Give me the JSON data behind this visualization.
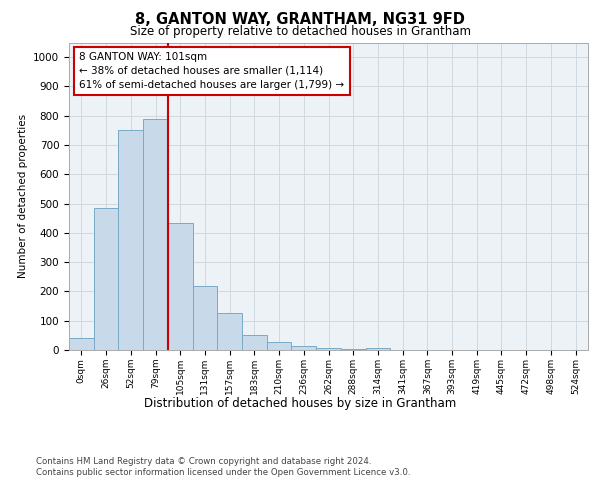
{
  "title": "8, GANTON WAY, GRANTHAM, NG31 9FD",
  "subtitle": "Size of property relative to detached houses in Grantham",
  "xlabel": "Distribution of detached houses by size in Grantham",
  "ylabel": "Number of detached properties",
  "categories": [
    "0sqm",
    "26sqm",
    "52sqm",
    "79sqm",
    "105sqm",
    "131sqm",
    "157sqm",
    "183sqm",
    "210sqm",
    "236sqm",
    "262sqm",
    "288sqm",
    "314sqm",
    "341sqm",
    "367sqm",
    "393sqm",
    "419sqm",
    "445sqm",
    "472sqm",
    "498sqm",
    "524sqm"
  ],
  "bar_heights": [
    40,
    485,
    750,
    790,
    435,
    220,
    128,
    50,
    27,
    13,
    8,
    2,
    8,
    0,
    0,
    0,
    0,
    0,
    0,
    0,
    0
  ],
  "vline_x": 4.0,
  "annotation_text": "8 GANTON WAY: 101sqm\n← 38% of detached houses are smaller (1,114)\n61% of semi-detached houses are larger (1,799) →",
  "bar_color": "#c8d9ea",
  "bar_edge_color": "#7aaac8",
  "vline_color": "#cc0000",
  "grid_color": "#d0d8e0",
  "plot_bg_color": "#edf2f7",
  "footer_text": "Contains HM Land Registry data © Crown copyright and database right 2024.\nContains public sector information licensed under the Open Government Licence v3.0.",
  "ylim": [
    0,
    1050
  ],
  "yticks": [
    0,
    100,
    200,
    300,
    400,
    500,
    600,
    700,
    800,
    900,
    1000
  ]
}
